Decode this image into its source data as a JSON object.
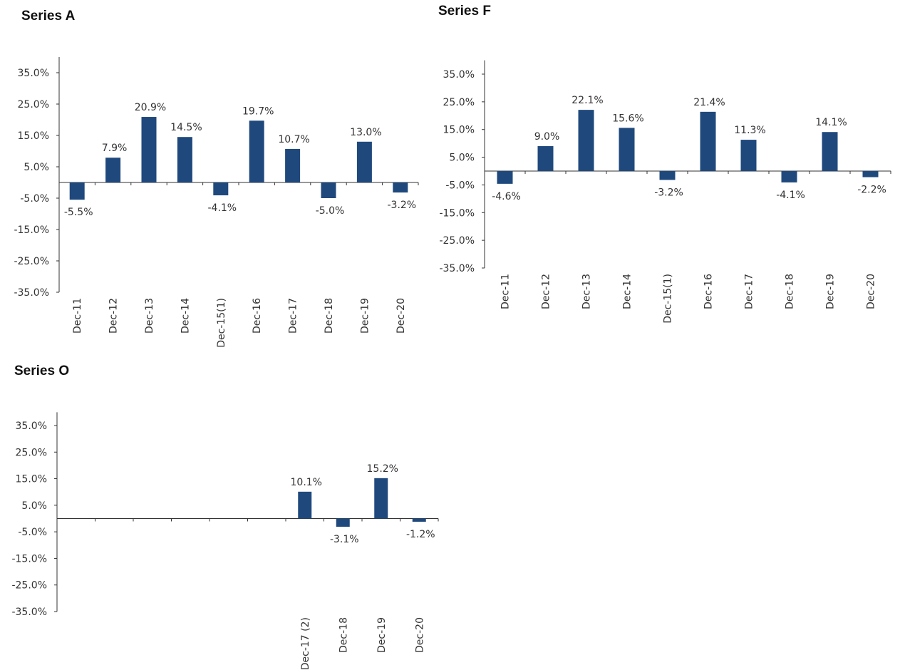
{
  "chart_data": [
    {
      "type": "bar",
      "title": "Series A",
      "categories": [
        "Dec-11",
        "Dec-12",
        "Dec-13",
        "Dec-14",
        "Dec-15(1)",
        "Dec-16",
        "Dec-17",
        "Dec-18",
        "Dec-19",
        "Dec-20"
      ],
      "values": [
        -5.5,
        7.9,
        20.9,
        14.5,
        -4.1,
        19.7,
        10.7,
        -5.0,
        13.0,
        -3.2
      ],
      "value_labels": [
        "-5.5%",
        "7.9%",
        "20.9%",
        "14.5%",
        "-4.1%",
        "19.7%",
        "10.7%",
        "-5.0%",
        "13.0%",
        "-3.2%"
      ],
      "ylim": [
        -35,
        40
      ],
      "yticks": [
        35,
        25,
        15,
        5,
        -5,
        -15,
        -25,
        -35
      ],
      "ytick_labels": [
        "35.0%",
        "25.0%",
        "15.0%",
        "5.0%",
        "-5.0%",
        "-15.0%",
        "-25.0%",
        "-35.0%"
      ],
      "xlabel": "",
      "ylabel": "",
      "grid": false,
      "bar_color": "#1f497d"
    },
    {
      "type": "bar",
      "title": "Series F",
      "categories": [
        "Dec-11",
        "Dec-12",
        "Dec-13",
        "Dec-14",
        "Dec-15(1)",
        "Dec-16",
        "Dec-17",
        "Dec-18",
        "Dec-19",
        "Dec-20"
      ],
      "values": [
        -4.6,
        9.0,
        22.1,
        15.6,
        -3.2,
        21.4,
        11.3,
        -4.1,
        14.1,
        -2.2
      ],
      "value_labels": [
        "-4.6%",
        "9.0%",
        "22.1%",
        "15.6%",
        "-3.2%",
        "21.4%",
        "11.3%",
        "-4.1%",
        "14.1%",
        "-2.2%"
      ],
      "ylim": [
        -35,
        40
      ],
      "yticks": [
        35,
        25,
        15,
        5,
        -5,
        -15,
        -25,
        -35
      ],
      "ytick_labels": [
        "35.0%",
        "25.0%",
        "15.0%",
        "5.0%",
        "-5.0%",
        "-15.0%",
        "-25.0%",
        "-35.0%"
      ],
      "xlabel": "",
      "ylabel": "",
      "grid": false,
      "bar_color": "#1f497d"
    },
    {
      "type": "bar",
      "title": "Series O",
      "categories": [
        "",
        "",
        "",
        "",
        "",
        "",
        "Dec-17 (2)",
        "Dec-18",
        "Dec-19",
        "Dec-20"
      ],
      "values": [
        null,
        null,
        null,
        null,
        null,
        null,
        10.1,
        -3.1,
        15.2,
        -1.2
      ],
      "value_labels": [
        "",
        "",
        "",
        "",
        "",
        "",
        "10.1%",
        "-3.1%",
        "15.2%",
        "-1.2%"
      ],
      "ylim": [
        -35,
        40
      ],
      "yticks": [
        35,
        25,
        15,
        5,
        -5,
        -15,
        -25,
        -35
      ],
      "ytick_labels": [
        "35.0%",
        "25.0%",
        "15.0%",
        "5.0%",
        "-5.0%",
        "-15.0%",
        "-25.0%",
        "-35.0%"
      ],
      "xlabel": "",
      "ylabel": "",
      "grid": false,
      "bar_color": "#1f497d"
    }
  ]
}
